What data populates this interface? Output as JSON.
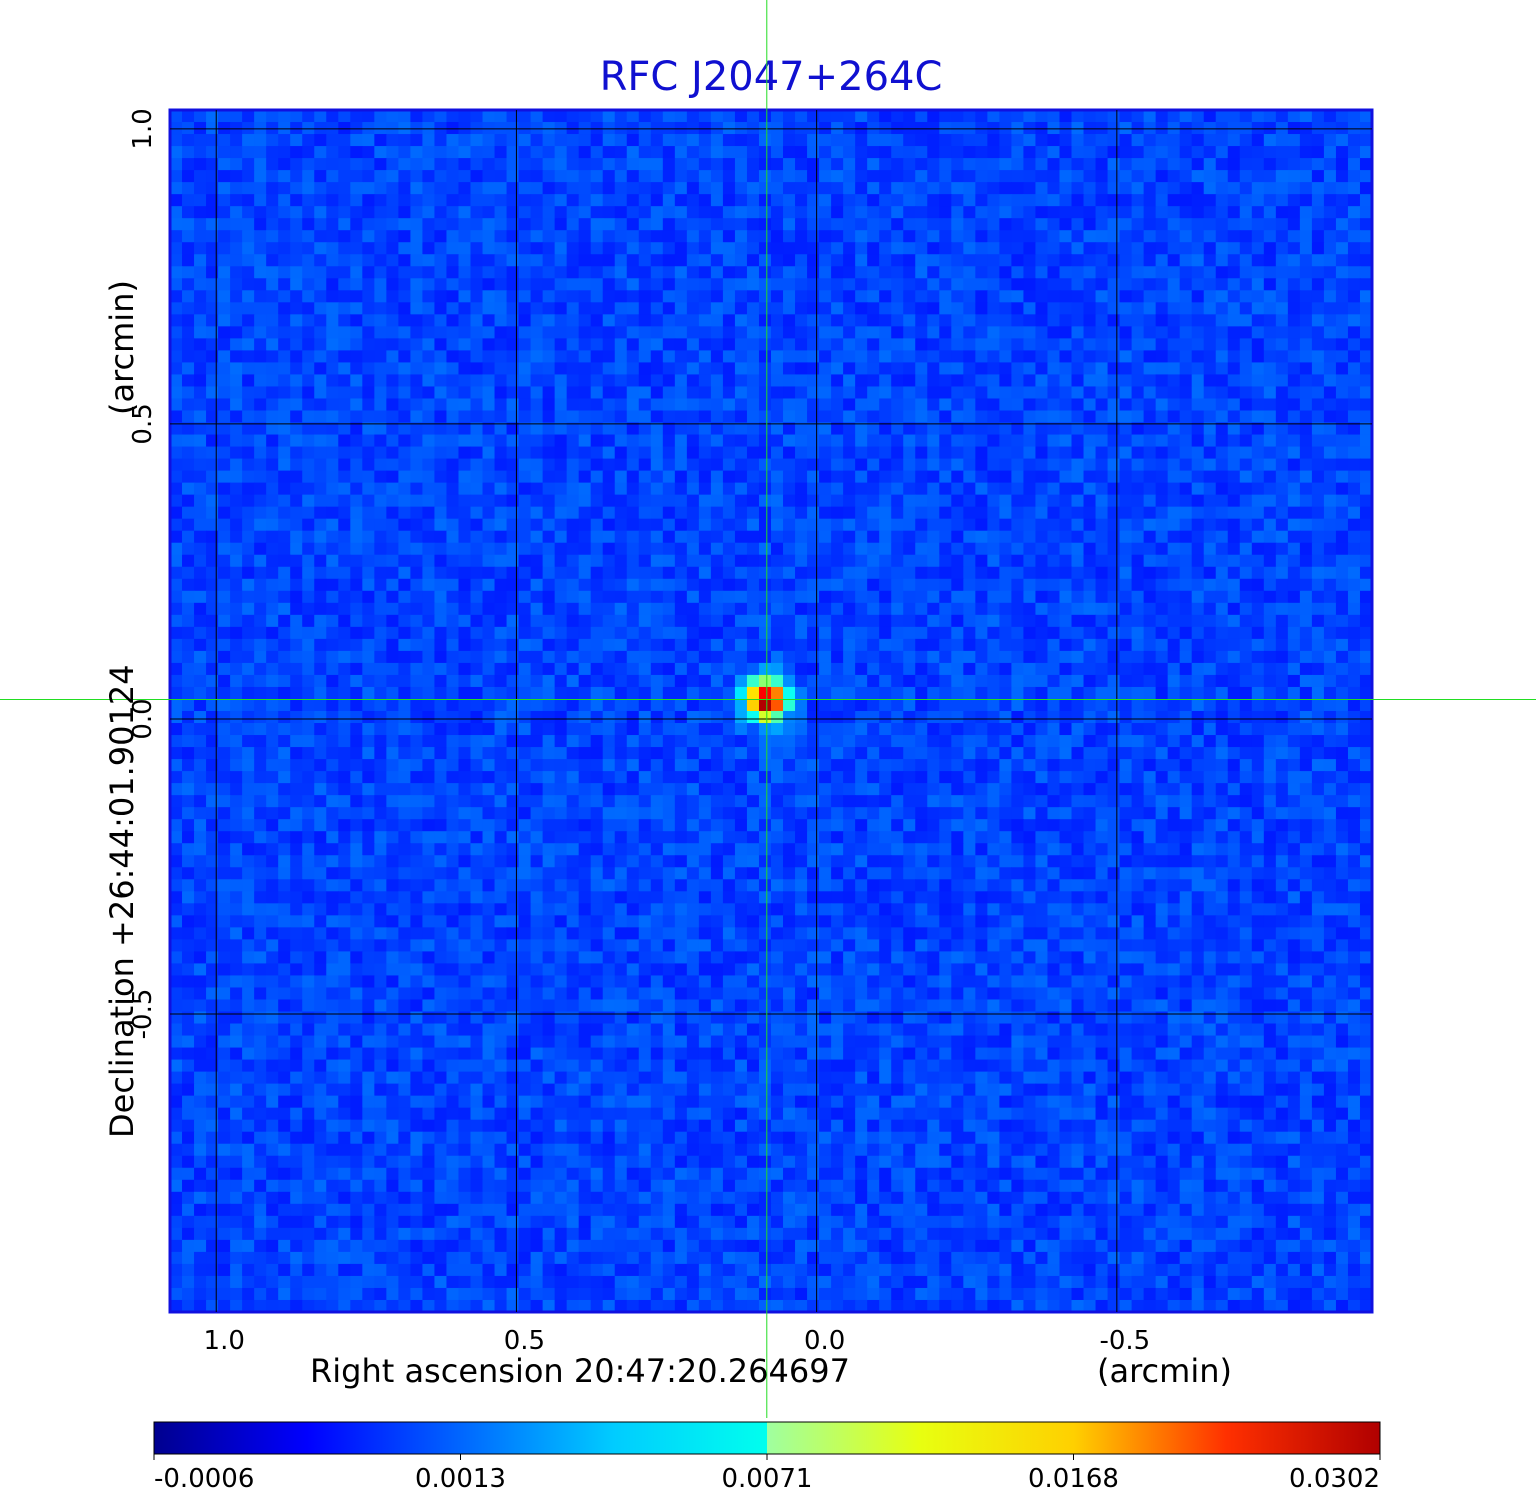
{
  "chart_data": {
    "type": "heatmap",
    "title": "RFC J2047+264C",
    "title_color": "#1010d0",
    "xlabel": "Right ascension  20:47:20.264697",
    "xunit": "(arcmin)",
    "ylabel": "Declination  +26:44:01.90124",
    "yunit": "(arcmin)",
    "x_ticks": [
      {
        "value": 1.0,
        "label": "1.0"
      },
      {
        "value": 0.5,
        "label": "0.5"
      },
      {
        "value": 0.0,
        "label": "0.0"
      },
      {
        "value": -0.5,
        "label": "-0.5"
      }
    ],
    "y_ticks": [
      {
        "value": 1.0,
        "label": "1.0"
      },
      {
        "value": 0.5,
        "label": "0.5"
      },
      {
        "value": 0.0,
        "label": "0.0"
      },
      {
        "value": -0.5,
        "label": "-0.5"
      }
    ],
    "xlim": [
      1.077,
      -0.925
    ],
    "ylim": [
      -1.005,
      1.032
    ],
    "grid": true,
    "grid_color": "#000000",
    "crosshair": {
      "x": 0.083,
      "y": 0.033,
      "color": "#22dd22"
    },
    "source_peak": {
      "x": 0.083,
      "y": 0.033,
      "value": 0.0302
    },
    "background_level": 0.0,
    "colormap": "jet",
    "colorbar": {
      "ticks": [
        {
          "value": -0.0006,
          "label": "-0.0006"
        },
        {
          "value": 0.0013,
          "label": "0.0013"
        },
        {
          "value": 0.0071,
          "label": "0.0071"
        },
        {
          "value": 0.0168,
          "label": "0.0168"
        },
        {
          "value": 0.0302,
          "label": "0.0302"
        }
      ]
    }
  }
}
